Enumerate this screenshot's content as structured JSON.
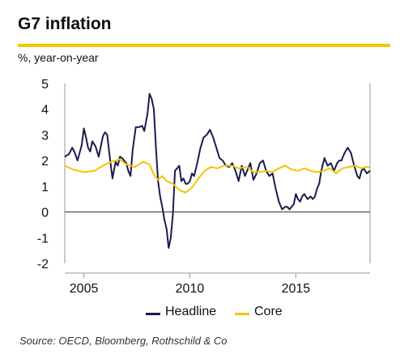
{
  "title": "G7 inflation",
  "subtitle": "%, year-on-year",
  "source": "Source: OECD, Bloomberg, Rothschild & Co",
  "colors": {
    "headline": "#1b1b4f",
    "core": "#f2c500",
    "accent": "#f2c500",
    "axis": "#999999"
  },
  "chart_data": {
    "type": "line",
    "title": "G7 inflation",
    "ylabel": "%, year-on-year",
    "xlim": [
      2004.1,
      2018.5
    ],
    "ylim": [
      -2,
      5
    ],
    "yticks": [
      5,
      4,
      3,
      2,
      1,
      0,
      -1,
      -2
    ],
    "xticks": [
      2005,
      2010,
      2015
    ],
    "grid": false,
    "legend_position": "bottom",
    "series": [
      {
        "name": "Headline",
        "color": "#1b1b4f",
        "x": [
          2004.1,
          2004.3,
          2004.45,
          2004.55,
          2004.7,
          2004.8,
          2004.9,
          2005.0,
          2005.1,
          2005.2,
          2005.3,
          2005.4,
          2005.55,
          2005.7,
          2005.8,
          2005.9,
          2006.0,
          2006.1,
          2006.2,
          2006.35,
          2006.5,
          2006.6,
          2006.7,
          2006.8,
          2006.9,
          2007.0,
          2007.1,
          2007.2,
          2007.3,
          2007.45,
          2007.6,
          2007.75,
          2007.85,
          2008.0,
          2008.1,
          2008.2,
          2008.3,
          2008.4,
          2008.5,
          2008.6,
          2008.7,
          2008.8,
          2008.9,
          2009.0,
          2009.1,
          2009.2,
          2009.3,
          2009.4,
          2009.5,
          2009.6,
          2009.7,
          2009.8,
          2009.9,
          2010.0,
          2010.1,
          2010.2,
          2010.35,
          2010.5,
          2010.65,
          2010.8,
          2010.95,
          2011.1,
          2011.25,
          2011.4,
          2011.55,
          2011.7,
          2011.85,
          2012.0,
          2012.15,
          2012.3,
          2012.45,
          2012.6,
          2012.75,
          2012.85,
          2013.0,
          2013.15,
          2013.3,
          2013.45,
          2013.6,
          2013.75,
          2013.9,
          2014.05,
          2014.2,
          2014.35,
          2014.5,
          2014.6,
          2014.7,
          2014.8,
          2014.9,
          2015.0,
          2015.1,
          2015.2,
          2015.3,
          2015.4,
          2015.55,
          2015.7,
          2015.8,
          2015.9,
          2016.0,
          2016.1,
          2016.2,
          2016.35,
          2016.5,
          2016.65,
          2016.8,
          2016.95,
          2017.05,
          2017.15,
          2017.3,
          2017.45,
          2017.6,
          2017.75,
          2017.9,
          2018.0,
          2018.1,
          2018.2,
          2018.35,
          2018.5
        ],
        "y": [
          2.15,
          2.25,
          2.5,
          2.35,
          2.0,
          2.3,
          2.6,
          3.25,
          2.9,
          2.5,
          2.35,
          2.75,
          2.55,
          2.15,
          2.55,
          2.95,
          3.1,
          3.0,
          2.3,
          1.3,
          1.95,
          1.8,
          2.15,
          2.1,
          2.0,
          1.9,
          1.6,
          1.4,
          2.4,
          3.3,
          3.3,
          3.35,
          3.15,
          3.8,
          4.6,
          4.4,
          4.0,
          2.5,
          1.2,
          0.6,
          0.2,
          -0.3,
          -0.65,
          -1.4,
          -1.0,
          -0.1,
          1.6,
          1.7,
          1.8,
          1.2,
          1.3,
          1.1,
          1.1,
          1.2,
          1.5,
          1.4,
          1.9,
          2.5,
          2.9,
          3.0,
          3.2,
          2.9,
          2.5,
          2.1,
          2.0,
          1.8,
          1.75,
          1.9,
          1.6,
          1.2,
          1.8,
          1.4,
          1.7,
          1.9,
          1.25,
          1.5,
          1.9,
          2.0,
          1.6,
          1.4,
          1.5,
          0.9,
          0.4,
          0.1,
          0.2,
          0.2,
          0.1,
          0.2,
          0.3,
          0.7,
          0.5,
          0.4,
          0.6,
          0.7,
          0.5,
          0.6,
          0.5,
          0.6,
          0.9,
          1.1,
          1.6,
          2.1,
          1.8,
          1.9,
          1.6,
          1.9,
          2.0,
          2.0,
          2.3,
          2.5,
          2.3,
          1.8,
          1.4,
          1.3,
          1.6,
          1.7,
          1.5,
          1.6
        ]
      },
      {
        "name": "Core",
        "color": "#f2c500",
        "x": [
          2004.1,
          2004.5,
          2005.0,
          2005.5,
          2005.9,
          2006.3,
          2006.7,
          2007.0,
          2007.4,
          2007.8,
          2008.1,
          2008.3,
          2008.5,
          2008.7,
          2008.9,
          2009.2,
          2009.5,
          2009.8,
          2010.1,
          2010.4,
          2010.7,
          2011.0,
          2011.3,
          2011.6,
          2012.0,
          2012.3,
          2012.7,
          2013.0,
          2013.3,
          2013.6,
          2013.9,
          2014.2,
          2014.5,
          2014.8,
          2015.1,
          2015.4,
          2015.7,
          2016.0,
          2016.3,
          2016.6,
          2016.9,
          2017.2,
          2017.5,
          2017.8,
          2018.1,
          2018.3,
          2018.5
        ],
        "y": [
          1.8,
          1.65,
          1.55,
          1.6,
          1.8,
          1.95,
          2.05,
          1.85,
          1.75,
          1.95,
          1.85,
          1.45,
          1.25,
          1.4,
          1.2,
          1.1,
          0.85,
          0.75,
          0.95,
          1.3,
          1.6,
          1.75,
          1.7,
          1.8,
          1.8,
          1.7,
          1.75,
          1.55,
          1.55,
          1.6,
          1.55,
          1.7,
          1.8,
          1.65,
          1.6,
          1.7,
          1.6,
          1.55,
          1.6,
          1.7,
          1.5,
          1.7,
          1.75,
          1.8,
          1.7,
          1.75,
          1.75
        ]
      }
    ]
  },
  "legend": {
    "headline_label": "Headline",
    "core_label": "Core"
  }
}
